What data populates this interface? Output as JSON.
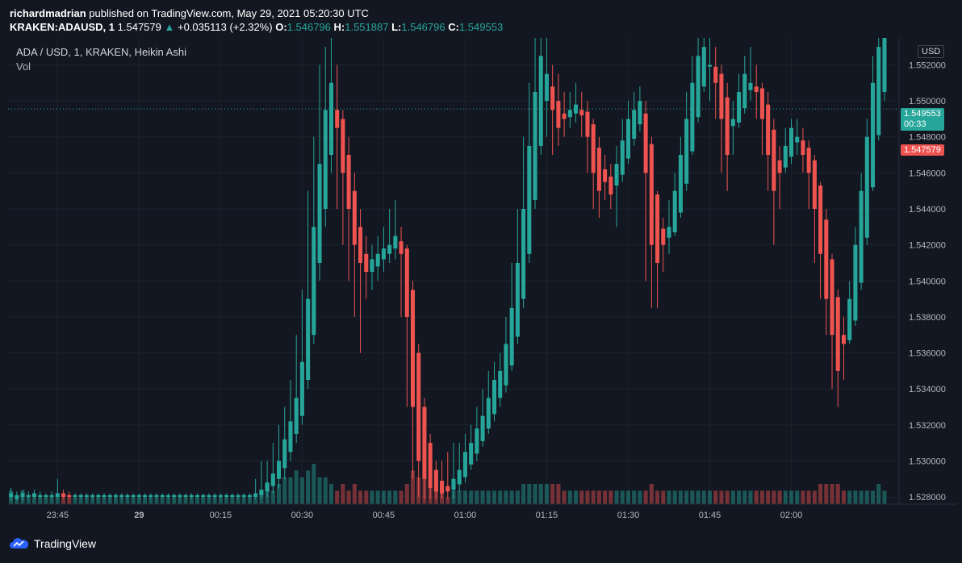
{
  "header": {
    "author": "richardmadrian",
    "published_text": "published on TradingView.com, May 29, 2021 05:20:30 UTC",
    "symbol": "KRAKEN:ADAUSD, 1",
    "last": "1.547579",
    "change": "+0.035113 (+2.32%)",
    "o_label": "O:",
    "o": "1.546796",
    "h_label": "H:",
    "h": "1.551887",
    "l_label": "L:",
    "l": "1.546796",
    "c_label": "C:",
    "c": "1.549553"
  },
  "legend": {
    "title": "ADA / USD, 1, KRAKEN, Heikin Ashi",
    "vol": "Vol"
  },
  "price_axis": {
    "currency": "USD",
    "current_price": "1.549553",
    "countdown": "00:33",
    "last_close_tag": "1.547579"
  },
  "footer": {
    "brand": "TradingView"
  },
  "colors": {
    "up": "#26a69a",
    "down": "#ef5350",
    "bg": "#131722",
    "grid": "#1e222d",
    "axis_text": "#b2b5be"
  },
  "chart_data": {
    "type": "candlestick",
    "title": "ADA / USD, 1, KRAKEN, Heikin Ashi",
    "ylim": [
      1.5276,
      1.5535
    ],
    "y_ticks": [
      "1.552000",
      "1.550000",
      "1.548000",
      "1.546000",
      "1.544000",
      "1.542000",
      "1.540000",
      "1.538000",
      "1.536000",
      "1.534000",
      "1.532000",
      "1.530000",
      "1.528000"
    ],
    "x_ticks": [
      "23:45",
      "29",
      "00:15",
      "00:30",
      "00:45",
      "01:00",
      "01:15",
      "01:30",
      "01:45",
      "02:00"
    ],
    "candles": [
      {
        "o": 1.528,
        "c": 1.5282,
        "h": 1.5285,
        "l": 1.5278,
        "v": 2
      },
      {
        "o": 1.5279,
        "c": 1.5281,
        "h": 1.5283,
        "l": 1.5278,
        "v": 1
      },
      {
        "o": 1.528,
        "c": 1.5282,
        "h": 1.5284,
        "l": 1.5278,
        "v": 2
      },
      {
        "o": 1.528,
        "c": 1.5281,
        "h": 1.5283,
        "l": 1.5279,
        "v": 1
      },
      {
        "o": 1.528,
        "c": 1.5282,
        "h": 1.5284,
        "l": 1.5279,
        "v": 1
      },
      {
        "o": 1.528,
        "c": 1.5281,
        "h": 1.5283,
        "l": 1.5279,
        "v": 1
      },
      {
        "o": 1.528,
        "c": 1.5281,
        "h": 1.5282,
        "l": 1.5279,
        "v": 1
      },
      {
        "o": 1.528,
        "c": 1.5281,
        "h": 1.5283,
        "l": 1.5279,
        "v": 1
      },
      {
        "o": 1.528,
        "c": 1.5282,
        "h": 1.529,
        "l": 1.5279,
        "v": 1
      },
      {
        "o": 1.5282,
        "c": 1.528,
        "h": 1.5284,
        "l": 1.5279,
        "v": 1
      },
      {
        "o": 1.5281,
        "c": 1.528,
        "h": 1.5283,
        "l": 1.5279,
        "v": 1
      },
      {
        "o": 1.528,
        "c": 1.5281,
        "h": 1.5282,
        "l": 1.5279,
        "v": 1
      },
      {
        "o": 1.528,
        "c": 1.5281,
        "h": 1.5282,
        "l": 1.5279,
        "v": 1
      },
      {
        "o": 1.528,
        "c": 1.5281,
        "h": 1.5282,
        "l": 1.5279,
        "v": 1
      },
      {
        "o": 1.528,
        "c": 1.5281,
        "h": 1.5282,
        "l": 1.5279,
        "v": 1
      },
      {
        "o": 1.528,
        "c": 1.5281,
        "h": 1.5282,
        "l": 1.5279,
        "v": 1
      },
      {
        "o": 1.528,
        "c": 1.5281,
        "h": 1.5282,
        "l": 1.5279,
        "v": 1
      },
      {
        "o": 1.528,
        "c": 1.5281,
        "h": 1.5282,
        "l": 1.5279,
        "v": 1
      },
      {
        "o": 1.528,
        "c": 1.5281,
        "h": 1.5282,
        "l": 1.5279,
        "v": 1
      },
      {
        "o": 1.528,
        "c": 1.5281,
        "h": 1.5282,
        "l": 1.5279,
        "v": 1
      },
      {
        "o": 1.528,
        "c": 1.5281,
        "h": 1.5282,
        "l": 1.5279,
        "v": 1
      },
      {
        "o": 1.528,
        "c": 1.5281,
        "h": 1.5282,
        "l": 1.5279,
        "v": 1
      },
      {
        "o": 1.528,
        "c": 1.5281,
        "h": 1.5282,
        "l": 1.5279,
        "v": 1
      },
      {
        "o": 1.528,
        "c": 1.5281,
        "h": 1.5282,
        "l": 1.5279,
        "v": 1
      },
      {
        "o": 1.528,
        "c": 1.5281,
        "h": 1.5282,
        "l": 1.5279,
        "v": 1
      },
      {
        "o": 1.528,
        "c": 1.5281,
        "h": 1.5282,
        "l": 1.5279,
        "v": 1
      },
      {
        "o": 1.528,
        "c": 1.5281,
        "h": 1.5282,
        "l": 1.5279,
        "v": 1
      },
      {
        "o": 1.528,
        "c": 1.5281,
        "h": 1.5282,
        "l": 1.5279,
        "v": 1
      },
      {
        "o": 1.528,
        "c": 1.5281,
        "h": 1.5282,
        "l": 1.5279,
        "v": 1
      },
      {
        "o": 1.528,
        "c": 1.5281,
        "h": 1.5282,
        "l": 1.5279,
        "v": 1
      },
      {
        "o": 1.528,
        "c": 1.5281,
        "h": 1.5282,
        "l": 1.5279,
        "v": 1
      },
      {
        "o": 1.528,
        "c": 1.5281,
        "h": 1.5282,
        "l": 1.5279,
        "v": 1
      },
      {
        "o": 1.528,
        "c": 1.5281,
        "h": 1.5282,
        "l": 1.5279,
        "v": 1
      },
      {
        "o": 1.528,
        "c": 1.5281,
        "h": 1.5282,
        "l": 1.5279,
        "v": 1
      },
      {
        "o": 1.528,
        "c": 1.5281,
        "h": 1.5282,
        "l": 1.5279,
        "v": 1
      },
      {
        "o": 1.528,
        "c": 1.5281,
        "h": 1.5282,
        "l": 1.5279,
        "v": 1
      },
      {
        "o": 1.528,
        "c": 1.5281,
        "h": 1.5282,
        "l": 1.5279,
        "v": 1
      },
      {
        "o": 1.528,
        "c": 1.5281,
        "h": 1.5282,
        "l": 1.5279,
        "v": 1
      },
      {
        "o": 1.528,
        "c": 1.5281,
        "h": 1.5282,
        "l": 1.5279,
        "v": 1
      },
      {
        "o": 1.528,
        "c": 1.5281,
        "h": 1.5282,
        "l": 1.5279,
        "v": 1
      },
      {
        "o": 1.528,
        "c": 1.5281,
        "h": 1.5282,
        "l": 1.5279,
        "v": 1
      },
      {
        "o": 1.528,
        "c": 1.5281,
        "h": 1.5282,
        "l": 1.5279,
        "v": 1
      },
      {
        "o": 1.528,
        "c": 1.5282,
        "h": 1.529,
        "l": 1.5279,
        "v": 1
      },
      {
        "o": 1.5281,
        "c": 1.5284,
        "h": 1.53,
        "l": 1.5279,
        "v": 2
      },
      {
        "o": 1.5283,
        "c": 1.5288,
        "h": 1.53,
        "l": 1.528,
        "v": 3
      },
      {
        "o": 1.5286,
        "c": 1.5293,
        "h": 1.531,
        "l": 1.5282,
        "v": 2
      },
      {
        "o": 1.529,
        "c": 1.53,
        "h": 1.532,
        "l": 1.5285,
        "v": 3
      },
      {
        "o": 1.5296,
        "c": 1.5312,
        "h": 1.533,
        "l": 1.529,
        "v": 4
      },
      {
        "o": 1.5305,
        "c": 1.5322,
        "h": 1.5345,
        "l": 1.53,
        "v": 4
      },
      {
        "o": 1.5315,
        "c": 1.5335,
        "h": 1.537,
        "l": 1.531,
        "v": 5
      },
      {
        "o": 1.5325,
        "c": 1.5355,
        "h": 1.5395,
        "l": 1.532,
        "v": 4
      },
      {
        "o": 1.5345,
        "c": 1.539,
        "h": 1.545,
        "l": 1.534,
        "v": 5
      },
      {
        "o": 1.537,
        "c": 1.543,
        "h": 1.548,
        "l": 1.5365,
        "v": 6
      },
      {
        "o": 1.541,
        "c": 1.5465,
        "h": 1.552,
        "l": 1.54,
        "v": 4
      },
      {
        "o": 1.544,
        "c": 1.5495,
        "h": 1.553,
        "l": 1.543,
        "v": 4
      },
      {
        "o": 1.547,
        "c": 1.551,
        "h": 1.5535,
        "l": 1.546,
        "v": 3
      },
      {
        "o": 1.5495,
        "c": 1.5485,
        "h": 1.552,
        "l": 1.544,
        "v": 2
      },
      {
        "o": 1.549,
        "c": 1.546,
        "h": 1.5495,
        "l": 1.542,
        "v": 3
      },
      {
        "o": 1.547,
        "c": 1.544,
        "h": 1.548,
        "l": 1.54,
        "v": 2
      },
      {
        "o": 1.545,
        "c": 1.542,
        "h": 1.546,
        "l": 1.538,
        "v": 3
      },
      {
        "o": 1.543,
        "c": 1.541,
        "h": 1.544,
        "l": 1.536,
        "v": 2
      },
      {
        "o": 1.5415,
        "c": 1.5405,
        "h": 1.5425,
        "l": 1.539,
        "v": 2
      },
      {
        "o": 1.5405,
        "c": 1.5412,
        "h": 1.542,
        "l": 1.5395,
        "v": 2
      },
      {
        "o": 1.5408,
        "c": 1.5415,
        "h": 1.5425,
        "l": 1.54,
        "v": 2
      },
      {
        "o": 1.5412,
        "c": 1.5418,
        "h": 1.543,
        "l": 1.5405,
        "v": 2
      },
      {
        "o": 1.5415,
        "c": 1.542,
        "h": 1.544,
        "l": 1.541,
        "v": 2
      },
      {
        "o": 1.5418,
        "c": 1.5425,
        "h": 1.5445,
        "l": 1.5412,
        "v": 2
      },
      {
        "o": 1.5422,
        "c": 1.5415,
        "h": 1.543,
        "l": 1.538,
        "v": 2
      },
      {
        "o": 1.5418,
        "c": 1.538,
        "h": 1.542,
        "l": 1.533,
        "v": 3
      },
      {
        "o": 1.5395,
        "c": 1.533,
        "h": 1.54,
        "l": 1.529,
        "v": 5
      },
      {
        "o": 1.536,
        "c": 1.53,
        "h": 1.5365,
        "l": 1.528,
        "v": 4
      },
      {
        "o": 1.533,
        "c": 1.529,
        "h": 1.5335,
        "l": 1.5279,
        "v": 4
      },
      {
        "o": 1.531,
        "c": 1.5285,
        "h": 1.5315,
        "l": 1.5279,
        "v": 3
      },
      {
        "o": 1.5295,
        "c": 1.5283,
        "h": 1.53,
        "l": 1.5279,
        "v": 2
      },
      {
        "o": 1.5289,
        "c": 1.5282,
        "h": 1.53,
        "l": 1.5279,
        "v": 2
      },
      {
        "o": 1.5286,
        "c": 1.5283,
        "h": 1.5305,
        "l": 1.5279,
        "v": 1
      },
      {
        "o": 1.5284,
        "c": 1.529,
        "h": 1.531,
        "l": 1.5279,
        "v": 2
      },
      {
        "o": 1.5287,
        "c": 1.5295,
        "h": 1.531,
        "l": 1.5283,
        "v": 2
      },
      {
        "o": 1.5291,
        "c": 1.5305,
        "h": 1.5315,
        "l": 1.5288,
        "v": 2
      },
      {
        "o": 1.5298,
        "c": 1.531,
        "h": 1.532,
        "l": 1.5295,
        "v": 2
      },
      {
        "o": 1.5304,
        "c": 1.5318,
        "h": 1.533,
        "l": 1.53,
        "v": 2
      },
      {
        "o": 1.5311,
        "c": 1.5325,
        "h": 1.534,
        "l": 1.5308,
        "v": 2
      },
      {
        "o": 1.5318,
        "c": 1.5335,
        "h": 1.535,
        "l": 1.5315,
        "v": 2
      },
      {
        "o": 1.5326,
        "c": 1.5345,
        "h": 1.5355,
        "l": 1.5322,
        "v": 2
      },
      {
        "o": 1.5335,
        "c": 1.535,
        "h": 1.536,
        "l": 1.533,
        "v": 2
      },
      {
        "o": 1.5342,
        "c": 1.5365,
        "h": 1.538,
        "l": 1.5338,
        "v": 2
      },
      {
        "o": 1.5353,
        "c": 1.5385,
        "h": 1.541,
        "l": 1.535,
        "v": 2
      },
      {
        "o": 1.5369,
        "c": 1.541,
        "h": 1.544,
        "l": 1.5365,
        "v": 2
      },
      {
        "o": 1.539,
        "c": 1.544,
        "h": 1.548,
        "l": 1.5385,
        "v": 3
      },
      {
        "o": 1.5415,
        "c": 1.5475,
        "h": 1.551,
        "l": 1.541,
        "v": 3
      },
      {
        "o": 1.5445,
        "c": 1.5505,
        "h": 1.5535,
        "l": 1.544,
        "v": 3
      },
      {
        "o": 1.5475,
        "c": 1.5525,
        "h": 1.5535,
        "l": 1.547,
        "v": 3
      },
      {
        "o": 1.55,
        "c": 1.5515,
        "h": 1.5535,
        "l": 1.548,
        "v": 3
      },
      {
        "o": 1.5508,
        "c": 1.5495,
        "h": 1.552,
        "l": 1.547,
        "v": 3
      },
      {
        "o": 1.55,
        "c": 1.5485,
        "h": 1.5515,
        "l": 1.5475,
        "v": 3
      },
      {
        "o": 1.5493,
        "c": 1.549,
        "h": 1.5505,
        "l": 1.548,
        "v": 2
      },
      {
        "o": 1.5491,
        "c": 1.5495,
        "h": 1.5505,
        "l": 1.5485,
        "v": 2
      },
      {
        "o": 1.5493,
        "c": 1.5498,
        "h": 1.551,
        "l": 1.5488,
        "v": 2
      },
      {
        "o": 1.5495,
        "c": 1.5492,
        "h": 1.5505,
        "l": 1.548,
        "v": 2
      },
      {
        "o": 1.5494,
        "c": 1.548,
        "h": 1.55,
        "l": 1.546,
        "v": 2
      },
      {
        "o": 1.5487,
        "c": 1.546,
        "h": 1.549,
        "l": 1.544,
        "v": 2
      },
      {
        "o": 1.5474,
        "c": 1.545,
        "h": 1.548,
        "l": 1.5435,
        "v": 2
      },
      {
        "o": 1.5462,
        "c": 1.5455,
        "h": 1.547,
        "l": 1.5445,
        "v": 2
      },
      {
        "o": 1.5458,
        "c": 1.5448,
        "h": 1.5465,
        "l": 1.544,
        "v": 2
      },
      {
        "o": 1.5453,
        "c": 1.5465,
        "h": 1.5475,
        "l": 1.543,
        "v": 2
      },
      {
        "o": 1.5459,
        "c": 1.5478,
        "h": 1.549,
        "l": 1.5455,
        "v": 2
      },
      {
        "o": 1.5468,
        "c": 1.549,
        "h": 1.55,
        "l": 1.5465,
        "v": 2
      },
      {
        "o": 1.5479,
        "c": 1.5495,
        "h": 1.5505,
        "l": 1.5475,
        "v": 2
      },
      {
        "o": 1.5487,
        "c": 1.55,
        "h": 1.5508,
        "l": 1.5483,
        "v": 2
      },
      {
        "o": 1.5493,
        "c": 1.546,
        "h": 1.55,
        "l": 1.54,
        "v": 2
      },
      {
        "o": 1.5476,
        "c": 1.542,
        "h": 1.548,
        "l": 1.5385,
        "v": 3
      },
      {
        "o": 1.5448,
        "c": 1.541,
        "h": 1.545,
        "l": 1.5385,
        "v": 2
      },
      {
        "o": 1.5429,
        "c": 1.542,
        "h": 1.5435,
        "l": 1.5405,
        "v": 2
      },
      {
        "o": 1.5424,
        "c": 1.543,
        "h": 1.5445,
        "l": 1.5415,
        "v": 2
      },
      {
        "o": 1.5427,
        "c": 1.545,
        "h": 1.546,
        "l": 1.5425,
        "v": 2
      },
      {
        "o": 1.5438,
        "c": 1.547,
        "h": 1.548,
        "l": 1.5435,
        "v": 2
      },
      {
        "o": 1.5454,
        "c": 1.549,
        "h": 1.5505,
        "l": 1.545,
        "v": 2
      },
      {
        "o": 1.5472,
        "c": 1.551,
        "h": 1.5525,
        "l": 1.547,
        "v": 2
      },
      {
        "o": 1.5491,
        "c": 1.5525,
        "h": 1.5535,
        "l": 1.5488,
        "v": 2
      },
      {
        "o": 1.5508,
        "c": 1.553,
        "h": 1.5535,
        "l": 1.5505,
        "v": 2
      },
      {
        "o": 1.5519,
        "c": 1.552,
        "h": 1.5535,
        "l": 1.55,
        "v": 2
      },
      {
        "o": 1.5519,
        "c": 1.551,
        "h": 1.553,
        "l": 1.549,
        "v": 2
      },
      {
        "o": 1.5515,
        "c": 1.549,
        "h": 1.552,
        "l": 1.546,
        "v": 2
      },
      {
        "o": 1.5502,
        "c": 1.547,
        "h": 1.551,
        "l": 1.545,
        "v": 2
      },
      {
        "o": 1.5486,
        "c": 1.549,
        "h": 1.55,
        "l": 1.547,
        "v": 2
      },
      {
        "o": 1.5488,
        "c": 1.5505,
        "h": 1.5515,
        "l": 1.5485,
        "v": 2
      },
      {
        "o": 1.5496,
        "c": 1.5515,
        "h": 1.5525,
        "l": 1.5493,
        "v": 2
      },
      {
        "o": 1.5506,
        "c": 1.551,
        "h": 1.553,
        "l": 1.55,
        "v": 2
      },
      {
        "o": 1.5508,
        "c": 1.5505,
        "h": 1.552,
        "l": 1.549,
        "v": 2
      },
      {
        "o": 1.5507,
        "c": 1.549,
        "h": 1.551,
        "l": 1.547,
        "v": 2
      },
      {
        "o": 1.5498,
        "c": 1.547,
        "h": 1.5505,
        "l": 1.545,
        "v": 2
      },
      {
        "o": 1.5484,
        "c": 1.545,
        "h": 1.549,
        "l": 1.542,
        "v": 2
      },
      {
        "o": 1.5467,
        "c": 1.546,
        "h": 1.5475,
        "l": 1.544,
        "v": 2
      },
      {
        "o": 1.5463,
        "c": 1.5475,
        "h": 1.5485,
        "l": 1.546,
        "v": 2
      },
      {
        "o": 1.5469,
        "c": 1.5485,
        "h": 1.549,
        "l": 1.5465,
        "v": 2
      },
      {
        "o": 1.5477,
        "c": 1.548,
        "h": 1.549,
        "l": 1.547,
        "v": 2
      },
      {
        "o": 1.5478,
        "c": 1.547,
        "h": 1.5485,
        "l": 1.546,
        "v": 2
      },
      {
        "o": 1.5474,
        "c": 1.546,
        "h": 1.5478,
        "l": 1.544,
        "v": 2
      },
      {
        "o": 1.5467,
        "c": 1.544,
        "h": 1.547,
        "l": 1.541,
        "v": 2
      },
      {
        "o": 1.5453,
        "c": 1.5415,
        "h": 1.5455,
        "l": 1.539,
        "v": 3
      },
      {
        "o": 1.5434,
        "c": 1.539,
        "h": 1.544,
        "l": 1.537,
        "v": 3
      },
      {
        "o": 1.5412,
        "c": 1.537,
        "h": 1.5415,
        "l": 1.534,
        "v": 3
      },
      {
        "o": 1.5391,
        "c": 1.535,
        "h": 1.5395,
        "l": 1.533,
        "v": 3
      },
      {
        "o": 1.537,
        "c": 1.5365,
        "h": 1.538,
        "l": 1.5345,
        "v": 2
      },
      {
        "o": 1.5367,
        "c": 1.539,
        "h": 1.54,
        "l": 1.5365,
        "v": 2
      },
      {
        "o": 1.5378,
        "c": 1.542,
        "h": 1.543,
        "l": 1.5375,
        "v": 2
      },
      {
        "o": 1.5399,
        "c": 1.545,
        "h": 1.546,
        "l": 1.5395,
        "v": 2
      },
      {
        "o": 1.5424,
        "c": 1.548,
        "h": 1.549,
        "l": 1.542,
        "v": 2
      },
      {
        "o": 1.5452,
        "c": 1.551,
        "h": 1.5525,
        "l": 1.545,
        "v": 2
      },
      {
        "o": 1.5481,
        "c": 1.553,
        "h": 1.5535,
        "l": 1.5478,
        "v": 3
      },
      {
        "o": 1.5505,
        "c": 1.5535,
        "h": 1.5535,
        "l": 1.55,
        "v": 2
      }
    ]
  }
}
